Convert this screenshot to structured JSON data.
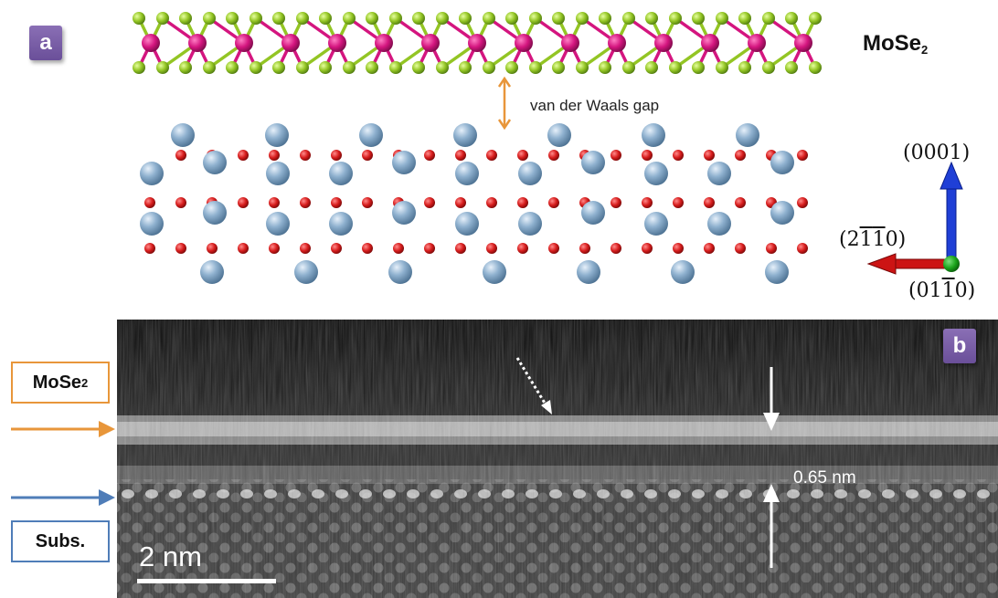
{
  "panels": {
    "a": "a",
    "b": "b"
  },
  "top": {
    "material_label": "MoSe",
    "material_subscript": "2",
    "gap_label": "van der Waals gap"
  },
  "axes": {
    "up": "(0001)",
    "left": {
      "d1": "2",
      "d2": "1",
      "d3": "1",
      "d4": "0"
    },
    "out": {
      "d1": "0",
      "d2": "1",
      "d3": "1",
      "d4": "0"
    },
    "colors": {
      "up": "#1f3fd6",
      "left": "#cc1414",
      "out": "#1aa31a"
    }
  },
  "bottom": {
    "layer_box": "MoSe",
    "layer_box_subscript": "2",
    "substrate_box": "Subs.",
    "spacing_label": "0.65 nm",
    "scale_bar": "2 nm",
    "colors": {
      "layer": "#e8963a",
      "substrate": "#4f7db8"
    }
  },
  "atom_colors": {
    "mo": "#d4157f",
    "se": "#93c524",
    "metal": "#8fb1cf",
    "oxygen": "#d71d1d"
  }
}
